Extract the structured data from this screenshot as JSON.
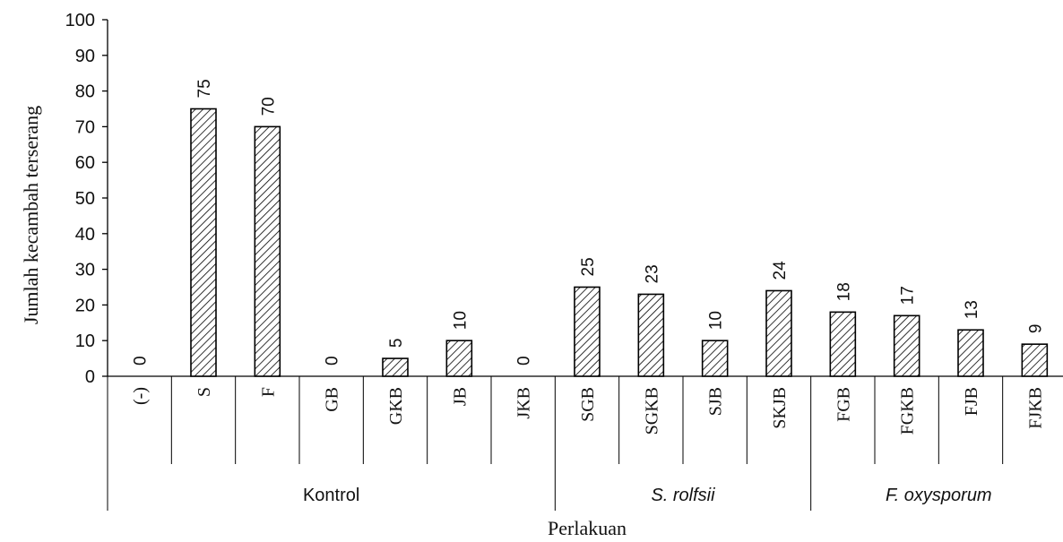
{
  "chart_data": {
    "type": "bar",
    "title": "",
    "xlabel": "Perlakuan",
    "ylabel": "Jumlah kecambah terserang",
    "ylim": [
      0,
      100
    ],
    "yticks": [
      0,
      10,
      20,
      30,
      40,
      50,
      60,
      70,
      80,
      90,
      100
    ],
    "categories": [
      "(-)",
      "S",
      "F",
      "GB",
      "GKB",
      "JB",
      "JKB",
      "SGB",
      "SGKB",
      "SJB",
      "SKJB",
      "FGB",
      "FGKB",
      "FJB",
      "FJKB"
    ],
    "values": [
      0,
      75,
      70,
      0,
      5,
      10,
      0,
      25,
      23,
      10,
      24,
      18,
      17,
      13,
      9
    ],
    "data_labels": [
      "0",
      "75",
      "70",
      "0",
      "5",
      "10",
      "0",
      "25",
      "23",
      "10",
      "24",
      "18",
      "17",
      "13",
      "9"
    ],
    "groups": [
      {
        "label": "Kontrol",
        "start": 0,
        "end": 6,
        "italic": false
      },
      {
        "label": "S. rolfsii",
        "start": 7,
        "end": 10,
        "italic": true
      },
      {
        "label": "F. oxysporum",
        "start": 11,
        "end": 14,
        "italic": true
      }
    ],
    "bar_fill": "diagonal-hatch",
    "colors": {
      "bar_stroke": "#000000",
      "hatch": "#000000",
      "background": "#ffffff"
    },
    "grid": false,
    "legend": "none"
  }
}
